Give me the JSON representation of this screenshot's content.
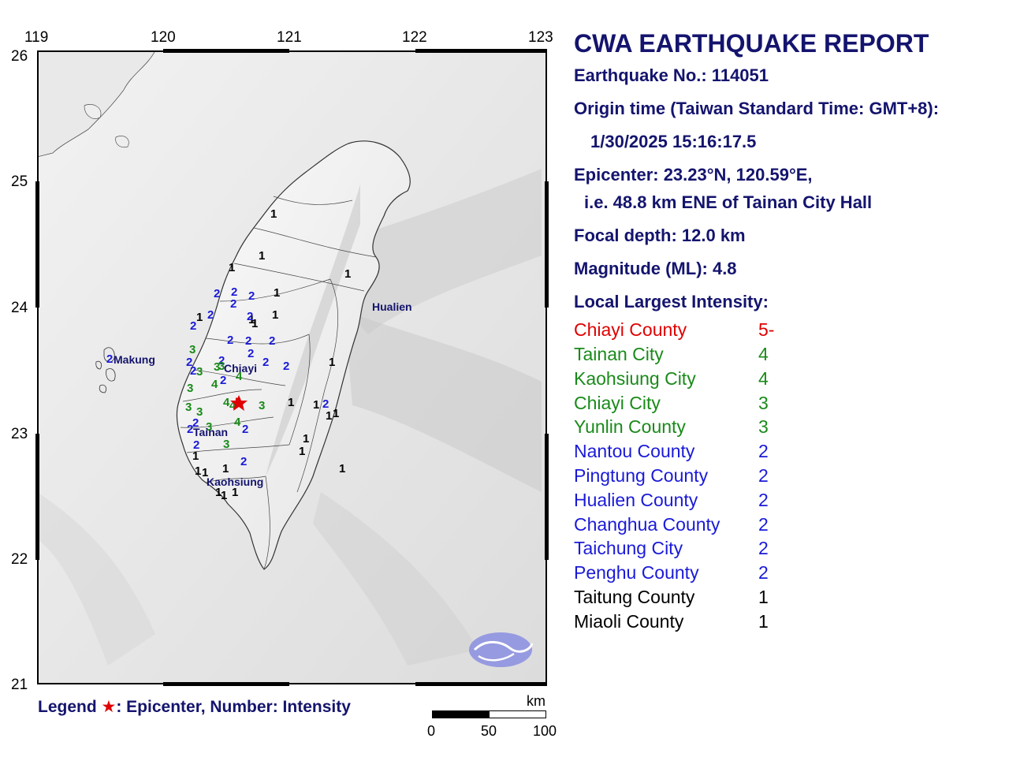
{
  "map": {
    "lon_ticks": [
      "119",
      "120",
      "121",
      "122",
      "123"
    ],
    "lat_ticks": [
      "26",
      "25",
      "24",
      "23",
      "22",
      "21"
    ],
    "epicenter_intensity": "5-",
    "places": [
      "Makung",
      "Chiayi",
      "Tainan",
      "Kaohsiung",
      "Hualien"
    ],
    "intensity_markers": [
      {
        "v": "1",
        "c": "black"
      },
      {
        "v": "1",
        "c": "black"
      },
      {
        "v": "1",
        "c": "black"
      },
      {
        "v": "1",
        "c": "black"
      },
      {
        "v": "1",
        "c": "black"
      },
      {
        "v": "1",
        "c": "black"
      },
      {
        "v": "1",
        "c": "black"
      },
      {
        "v": "1",
        "c": "black"
      },
      {
        "v": "1",
        "c": "black"
      },
      {
        "v": "1",
        "c": "black"
      },
      {
        "v": "1",
        "c": "black"
      },
      {
        "v": "1",
        "c": "black"
      },
      {
        "v": "1",
        "c": "black"
      },
      {
        "v": "1",
        "c": "black"
      },
      {
        "v": "1",
        "c": "black"
      },
      {
        "v": "1",
        "c": "black"
      },
      {
        "v": "1",
        "c": "black"
      },
      {
        "v": "1",
        "c": "black"
      },
      {
        "v": "1",
        "c": "black"
      },
      {
        "v": "1",
        "c": "black"
      },
      {
        "v": "1",
        "c": "black"
      },
      {
        "v": "1",
        "c": "black"
      },
      {
        "v": "1",
        "c": "black"
      },
      {
        "v": "1",
        "c": "black"
      },
      {
        "v": "2",
        "c": "blue"
      },
      {
        "v": "2",
        "c": "blue"
      },
      {
        "v": "2",
        "c": "blue"
      },
      {
        "v": "2",
        "c": "blue"
      },
      {
        "v": "2",
        "c": "blue"
      },
      {
        "v": "2",
        "c": "blue"
      },
      {
        "v": "2",
        "c": "blue"
      },
      {
        "v": "2",
        "c": "blue"
      },
      {
        "v": "2",
        "c": "blue"
      },
      {
        "v": "2",
        "c": "blue"
      },
      {
        "v": "2",
        "c": "blue"
      },
      {
        "v": "2",
        "c": "blue"
      },
      {
        "v": "2",
        "c": "blue"
      },
      {
        "v": "2",
        "c": "blue"
      },
      {
        "v": "2",
        "c": "blue"
      },
      {
        "v": "2",
        "c": "blue"
      },
      {
        "v": "2",
        "c": "blue"
      },
      {
        "v": "2",
        "c": "blue"
      },
      {
        "v": "2",
        "c": "blue"
      },
      {
        "v": "2",
        "c": "blue"
      },
      {
        "v": "2",
        "c": "blue"
      },
      {
        "v": "2",
        "c": "blue"
      },
      {
        "v": "2",
        "c": "blue"
      },
      {
        "v": "2",
        "c": "blue"
      },
      {
        "v": "3",
        "c": "green"
      },
      {
        "v": "3",
        "c": "green"
      },
      {
        "v": "3",
        "c": "green"
      },
      {
        "v": "3",
        "c": "green"
      },
      {
        "v": "3",
        "c": "green"
      },
      {
        "v": "3",
        "c": "green"
      },
      {
        "v": "3",
        "c": "green"
      },
      {
        "v": "3",
        "c": "green"
      },
      {
        "v": "3",
        "c": "green"
      },
      {
        "v": "3",
        "c": "green"
      },
      {
        "v": "4",
        "c": "green"
      },
      {
        "v": "4",
        "c": "green"
      },
      {
        "v": "4",
        "c": "green"
      },
      {
        "v": "4",
        "c": "green"
      },
      {
        "v": "4",
        "c": "green"
      }
    ]
  },
  "report": {
    "title": "CWA EARTHQUAKE REPORT",
    "number": "Earthquake No.: 114051",
    "origin_label": "Origin time (Taiwan Standard Time: GMT+8):",
    "origin_value": "1/30/2025 15:16:17.5",
    "epicenter": "Epicenter: 23.23°N, 120.59°E,",
    "epicenter_rel": "i.e. 48.8 km ENE of Tainan City Hall",
    "depth": "Focal depth: 12.0 km",
    "magnitude": "Magnitude (ML): 4.8",
    "intensity_heading": "Local Largest Intensity:"
  },
  "intensities": [
    {
      "place": "Chiayi County",
      "value": "5-",
      "color": "#e00000"
    },
    {
      "place": "Tainan City",
      "value": "4",
      "color": "#1a8a1a"
    },
    {
      "place": "Kaohsiung City",
      "value": "4",
      "color": "#1a8a1a"
    },
    {
      "place": "Chiayi City",
      "value": "3",
      "color": "#1a8a1a"
    },
    {
      "place": "Yunlin County",
      "value": "3",
      "color": "#1a8a1a"
    },
    {
      "place": "Nantou County",
      "value": "2",
      "color": "#1a1ad8"
    },
    {
      "place": "Pingtung County",
      "value": "2",
      "color": "#1a1ad8"
    },
    {
      "place": "Hualien County",
      "value": "2",
      "color": "#1a1ad8"
    },
    {
      "place": "Changhua County",
      "value": "2",
      "color": "#1a1ad8"
    },
    {
      "place": "Taichung City",
      "value": "2",
      "color": "#1a1ad8"
    },
    {
      "place": "Penghu County",
      "value": "2",
      "color": "#1a1ad8"
    },
    {
      "place": "Taitung County",
      "value": "1",
      "color": "#000000"
    },
    {
      "place": "Miaoli County",
      "value": "1",
      "color": "#000000"
    }
  ],
  "legend": {
    "prefix": "Legend",
    "star": "★",
    "text": ": Epicenter, Number: Intensity"
  },
  "scale": {
    "unit": "km",
    "labels": [
      "0",
      "50",
      "100"
    ]
  }
}
